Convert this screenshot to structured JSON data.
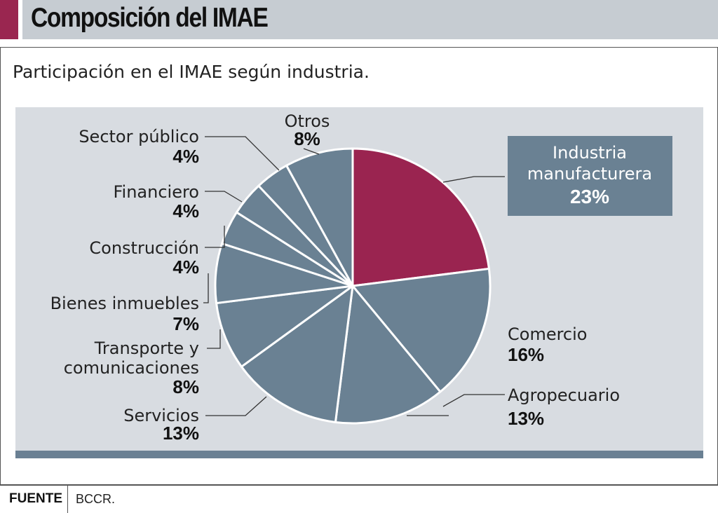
{
  "title": "Composición del IMAE",
  "subtitle": "Participación en el IMAE según industria.",
  "source": {
    "label": "FUENTE",
    "text": "BCCR."
  },
  "colors": {
    "highlight": "#9a2450",
    "default": "#6a8193",
    "slice_stroke": "#ffffff",
    "leader": "#333333"
  },
  "chart_data": {
    "type": "pie",
    "slices": [
      {
        "label": "Industria manufacturera",
        "value_label": "23%",
        "value": 23,
        "highlight": true
      },
      {
        "label": "Comercio",
        "value_label": "16%",
        "value": 16
      },
      {
        "label": "Agropecuario",
        "value_label": "13%",
        "value": 13
      },
      {
        "label": "Servicios",
        "value_label": "13%",
        "value": 13
      },
      {
        "label": "Transporte y comunicaciones",
        "value_label": "8%",
        "value": 8
      },
      {
        "label": "Bienes inmuebles",
        "value_label": "7%",
        "value": 7
      },
      {
        "label": "Construcción",
        "value_label": "4%",
        "value": 4
      },
      {
        "label": "Financiero",
        "value_label": "4%",
        "value": 4
      },
      {
        "label": "Sector público",
        "value_label": "4%",
        "value": 4
      },
      {
        "label": "Otros",
        "value_label": "8%",
        "value": 8
      }
    ]
  }
}
